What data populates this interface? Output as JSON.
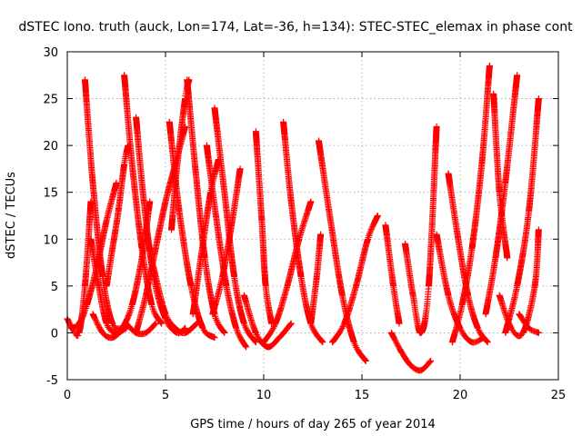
{
  "chart_data": {
    "type": "scatter",
    "title": "dSTEC Iono. truth (auck, Lon=174, Lat=-36, h=134): STEC-STEC_elemax in phase cont",
    "xlabel": "GPS time / hours of day 265 of year 2014",
    "ylabel": "dSTEC  / TECUs",
    "xlim": [
      0,
      25
    ],
    "ylim": [
      -5,
      30
    ],
    "xticks": [
      0,
      5,
      10,
      15,
      20,
      25
    ],
    "yticks": [
      -5,
      0,
      5,
      10,
      15,
      20,
      25,
      30
    ],
    "grid": true,
    "marker": "+",
    "color": "#ff0000",
    "series": [
      {
        "x": [
          0.0,
          0.3,
          0.6,
          0.9,
          1.2
        ],
        "y": [
          1.5,
          0.3,
          0.0,
          5.0,
          14.0
        ]
      },
      {
        "x": [
          0.2,
          0.6,
          1.0,
          1.5,
          2.0,
          2.5
        ],
        "y": [
          0.5,
          1.0,
          3.0,
          7.0,
          12.0,
          16.0
        ]
      },
      {
        "x": [
          0.9,
          1.3,
          1.8,
          2.3,
          2.9
        ],
        "y": [
          27.0,
          16.0,
          6.0,
          1.0,
          0.5
        ]
      },
      {
        "x": [
          1.2,
          1.6,
          2.0,
          2.5,
          3.0
        ],
        "y": [
          10.0,
          5.0,
          1.0,
          0.0,
          0.5
        ]
      },
      {
        "x": [
          1.3,
          1.8,
          2.3,
          2.8,
          3.3,
          3.8,
          4.2
        ],
        "y": [
          2.0,
          0.0,
          -0.5,
          0.5,
          3.0,
          8.0,
          14.0
        ]
      },
      {
        "x": [
          2.0,
          2.3,
          2.6,
          2.9,
          3.1
        ],
        "y": [
          5.0,
          9.0,
          13.0,
          18.0,
          20.0
        ]
      },
      {
        "x": [
          2.9,
          3.3,
          3.8,
          4.3,
          4.8
        ],
        "y": [
          27.5,
          18.0,
          9.0,
          3.0,
          1.0
        ]
      },
      {
        "x": [
          3.0,
          3.5,
          4.0,
          4.5
        ],
        "y": [
          1.0,
          0.0,
          0.0,
          1.0
        ]
      },
      {
        "x": [
          3.5,
          3.9,
          4.4,
          5.0,
          5.6,
          6.0
        ],
        "y": [
          23.0,
          14.0,
          6.0,
          1.5,
          0.0,
          0.5
        ]
      },
      {
        "x": [
          3.5,
          4.0,
          4.5,
          5.0,
          5.5,
          6.0
        ],
        "y": [
          0.0,
          4.0,
          9.0,
          14.0,
          18.0,
          22.0
        ]
      },
      {
        "x": [
          4.0,
          4.5,
          5.0,
          5.5,
          6.0,
          6.6
        ],
        "y": [
          11.0,
          6.0,
          2.0,
          0.5,
          0.0,
          1.0
        ]
      },
      {
        "x": [
          5.2,
          5.7,
          6.3,
          6.9,
          7.5
        ],
        "y": [
          22.5,
          13.0,
          5.0,
          0.5,
          -0.5
        ]
      },
      {
        "x": [
          5.3,
          5.6,
          6.0,
          6.2
        ],
        "y": [
          11.0,
          18.0,
          25.0,
          27.0
        ]
      },
      {
        "x": [
          6.1,
          6.5,
          7.0,
          7.5,
          8.0
        ],
        "y": [
          27.0,
          18.0,
          8.0,
          2.0,
          0.0
        ]
      },
      {
        "x": [
          6.4,
          6.8,
          7.3,
          7.7
        ],
        "y": [
          2.0,
          8.0,
          15.0,
          18.5
        ]
      },
      {
        "x": [
          7.1,
          7.6,
          8.1,
          8.6,
          9.1
        ],
        "y": [
          20.0,
          12.0,
          5.0,
          0.5,
          -1.5
        ]
      },
      {
        "x": [
          7.5,
          8.0,
          8.5,
          9.0,
          9.6
        ],
        "y": [
          24.0,
          15.0,
          6.0,
          1.0,
          -1.0
        ]
      },
      {
        "x": [
          7.4,
          7.9,
          8.4,
          8.8
        ],
        "y": [
          2.0,
          6.0,
          12.0,
          17.5
        ]
      },
      {
        "x": [
          9.0,
          9.6,
          10.2,
          10.8,
          11.4
        ],
        "y": [
          4.0,
          0.0,
          -1.5,
          -0.5,
          1.0
        ]
      },
      {
        "x": [
          9.6,
          9.9,
          10.1,
          10.4
        ],
        "y": [
          21.5,
          12.0,
          5.0,
          1.0
        ]
      },
      {
        "x": [
          10.0,
          10.6,
          11.2,
          11.8,
          12.4
        ],
        "y": [
          -1.0,
          1.0,
          5.0,
          10.0,
          14.0
        ]
      },
      {
        "x": [
          11.0,
          11.4,
          11.9,
          12.4,
          13.0
        ],
        "y": [
          22.5,
          14.0,
          6.0,
          1.0,
          -1.0
        ]
      },
      {
        "x": [
          12.4,
          12.7,
          12.9
        ],
        "y": [
          1.0,
          6.0,
          10.5
        ]
      },
      {
        "x": [
          12.8,
          13.4,
          14.0,
          14.6,
          15.2
        ],
        "y": [
          20.5,
          12.0,
          4.0,
          -1.0,
          -3.0
        ]
      },
      {
        "x": [
          13.5,
          14.1,
          14.7,
          15.3,
          15.8
        ],
        "y": [
          -1.0,
          1.0,
          5.0,
          10.0,
          12.5
        ]
      },
      {
        "x": [
          16.2,
          16.6,
          16.9
        ],
        "y": [
          11.5,
          5.0,
          1.0
        ]
      },
      {
        "x": [
          16.5,
          17.0,
          17.5,
          18.0,
          18.5
        ],
        "y": [
          0.0,
          -2.0,
          -3.5,
          -4.0,
          -3.0
        ]
      },
      {
        "x": [
          17.2,
          17.6,
          18.0,
          18.4,
          18.8
        ],
        "y": [
          9.5,
          4.0,
          0.0,
          5.0,
          22.0
        ]
      },
      {
        "x": [
          18.8,
          19.4,
          20.0,
          20.6,
          21.2
        ],
        "y": [
          10.5,
          4.0,
          0.5,
          -1.0,
          -0.5
        ]
      },
      {
        "x": [
          19.4,
          19.9,
          20.4,
          20.9,
          21.4
        ],
        "y": [
          17.0,
          10.0,
          4.0,
          0.5,
          -1.0
        ]
      },
      {
        "x": [
          19.6,
          20.1,
          20.6,
          21.1,
          21.5
        ],
        "y": [
          -1.0,
          3.0,
          9.0,
          18.0,
          28.5
        ]
      },
      {
        "x": [
          21.7,
          22.0,
          22.4
        ],
        "y": [
          25.5,
          15.0,
          8.0
        ]
      },
      {
        "x": [
          21.3,
          21.8,
          22.3,
          22.9
        ],
        "y": [
          2.0,
          8.0,
          16.0,
          27.5
        ]
      },
      {
        "x": [
          22.3,
          22.9,
          23.5,
          24.0
        ],
        "y": [
          0.0,
          5.0,
          13.0,
          25.0
        ]
      },
      {
        "x": [
          22.0,
          22.6,
          23.2,
          23.8,
          24.0
        ],
        "y": [
          4.0,
          0.5,
          0.0,
          5.0,
          11.0
        ]
      },
      {
        "x": [
          23.0,
          23.5,
          24.0
        ],
        "y": [
          2.0,
          0.5,
          0.0
        ]
      }
    ]
  }
}
